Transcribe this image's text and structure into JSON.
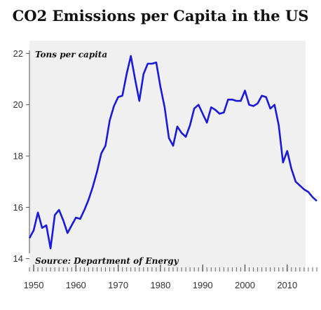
{
  "chart_data": {
    "type": "line",
    "title": "CO2 Emissions per Capita in the US",
    "ylabel": "Tons per capita",
    "source": "Source: Department of Energy",
    "xlim": [
      1949,
      2017
    ],
    "ylim": [
      13.5,
      22.5
    ],
    "x_ticks": [
      1950,
      1960,
      1970,
      1980,
      1990,
      2000,
      2010
    ],
    "x_tick_labels": [
      "1950",
      "1960",
      "1970",
      "1980",
      "1990",
      "2000",
      "2010"
    ],
    "y_ticks": [
      14,
      16,
      18,
      20,
      22
    ],
    "y_tick_labels": [
      "14",
      "16",
      "18",
      "20",
      "22"
    ],
    "grid": false,
    "line_color": "#1a1adb",
    "series": [
      {
        "x": [
          1949,
          1950,
          1951,
          1952,
          1953,
          1954,
          1955,
          1956,
          1957,
          1958,
          1959,
          1960,
          1961,
          1962,
          1963,
          1964,
          1965,
          1966,
          1967,
          1968,
          1969,
          1970,
          1971,
          1972,
          1973,
          1974,
          1975,
          1976,
          1977,
          1978,
          1979,
          1980,
          1981,
          1982,
          1983,
          1984,
          1985,
          1986,
          1987,
          1988,
          1989,
          1990,
          1991,
          1992,
          1993,
          1994,
          1995,
          1996,
          1997,
          1998,
          1999,
          2000,
          2001,
          2002,
          2003,
          2004,
          2005,
          2006,
          2007,
          2008,
          2009,
          2010,
          2011,
          2012,
          2013,
          2014,
          2015,
          2016,
          2017
        ],
        "y": [
          14.8,
          15.1,
          15.8,
          15.2,
          15.3,
          14.4,
          15.7,
          15.9,
          15.5,
          15.0,
          15.3,
          15.6,
          15.55,
          15.9,
          16.3,
          16.8,
          17.4,
          18.1,
          18.4,
          19.4,
          19.95,
          20.3,
          20.35,
          21.2,
          21.9,
          21.0,
          20.15,
          21.2,
          21.6,
          21.6,
          21.65,
          20.7,
          19.9,
          18.7,
          18.4,
          19.15,
          18.9,
          18.75,
          19.2,
          19.85,
          20.0,
          19.65,
          19.3,
          19.9,
          19.8,
          19.65,
          19.7,
          20.2,
          20.2,
          20.15,
          20.15,
          20.55,
          20.0,
          19.95,
          20.05,
          20.35,
          20.3,
          19.85,
          20.0,
          19.2,
          17.75,
          18.2,
          17.5,
          17.0,
          16.85,
          16.7,
          16.6,
          16.4,
          16.25
        ]
      }
    ]
  }
}
